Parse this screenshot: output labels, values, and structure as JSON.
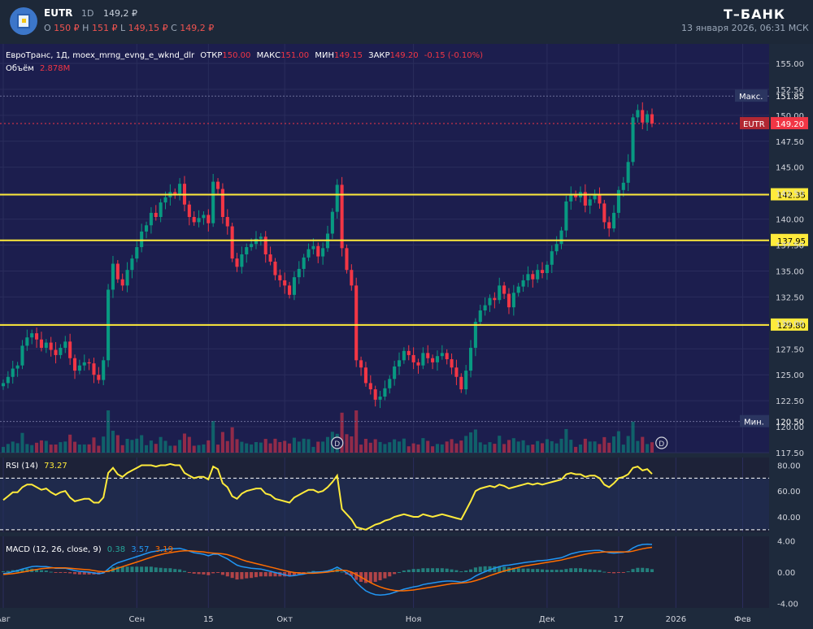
{
  "header": {
    "symbol": "EUTR",
    "timeframe": "1D",
    "price": "149,2 ₽",
    "o_label": "O",
    "o_value": "150 ₽",
    "h_label": "H",
    "h_value": "151 ₽",
    "l_label": "L",
    "l_value": "149,15 ₽",
    "c_label": "C",
    "c_value": "149,2 ₽",
    "brand": "Т–БАНК",
    "datetime": "13 января 2026, 06:31 МСК"
  },
  "legend": {
    "name": "ЕвроТранс, 1Д, moex_mrng_evng_e_wknd_dlr",
    "open_label": "ОТКР",
    "open_value": "150.00",
    "high_label": "МАКС",
    "high_value": "151.00",
    "low_label": "МИН",
    "low_value": "149.15",
    "close_label": "ЗАКР",
    "close_value": "149.20",
    "change": "-0.15 (-0.10%)",
    "volume_label": "Объём",
    "volume_value": "2.878M"
  },
  "colors": {
    "up": "#089981",
    "down": "#f23645",
    "level": "#ffeb3b",
    "rsi": "#ffeb3b",
    "macd": "#2196f3",
    "signal": "#ff6d00",
    "background": "#1e2a3c",
    "price_panel": "#1c1e4e"
  },
  "icons": [
    "dividend-marker-icon"
  ],
  "chart_data": [
    {
      "type": "candlestick",
      "title": "ЕвроТранс, 1Д",
      "ylim": [
        117.5,
        156.25
      ],
      "y_ticks": [
        "155.00",
        "152.50",
        "150.00",
        "147.50",
        "145.00",
        "142.50",
        "140.00",
        "137.50",
        "135.00",
        "132.50",
        "130.00",
        "127.50",
        "125.00",
        "122.50",
        "120.00",
        "117.50"
      ],
      "x_ticks": [
        "Авг",
        "Сен",
        "15",
        "Окт",
        "Ноя",
        "Дек",
        "17",
        "2026",
        "Фев"
      ],
      "closes": [
        124.2,
        124.8,
        125.6,
        125.9,
        127.8,
        128.6,
        129.0,
        128.4,
        127.6,
        128.1,
        127.4,
        126.9,
        127.6,
        128.2,
        126.6,
        125.4,
        125.9,
        126.2,
        126.1,
        125.0,
        124.5,
        126.4,
        133.2,
        135.7,
        134.2,
        133.6,
        135.1,
        136.2,
        137.3,
        138.8,
        139.4,
        140.6,
        140.2,
        141.6,
        142.1,
        142.6,
        142.3,
        143.4,
        141.4,
        140.2,
        139.7,
        140.1,
        140.4,
        139.6,
        143.6,
        142.9,
        140.2,
        139.3,
        136.2,
        135.4,
        136.6,
        137.3,
        137.6,
        138.1,
        138.3,
        136.6,
        135.9,
        134.6,
        134.1,
        133.6,
        132.7,
        134.4,
        135.2,
        136.3,
        137.1,
        137.4,
        136.4,
        137.2,
        138.6,
        140.7,
        143.3,
        137.2,
        135.1,
        133.6,
        126.4,
        125.7,
        124.2,
        123.6,
        122.6,
        122.9,
        123.7,
        124.6,
        125.8,
        126.4,
        127.3,
        126.9,
        126.2,
        125.9,
        127.1,
        126.6,
        126.2,
        126.8,
        127.1,
        126.5,
        125.7,
        124.8,
        123.6,
        125.4,
        127.6,
        130.1,
        131.2,
        131.7,
        132.4,
        132.2,
        133.6,
        132.8,
        131.5,
        132.9,
        133.5,
        134.1,
        134.7,
        134.2,
        135.1,
        134.8,
        135.6,
        136.9,
        137.6,
        138.9,
        141.7,
        142.4,
        142.1,
        142.6,
        141.3,
        141.9,
        142.3,
        141.5,
        139.7,
        139.1,
        140.6,
        142.8,
        143.5,
        145.5,
        149.8,
        150.5,
        149.3,
        150.1,
        149.2
      ],
      "volume_scale": "relative"
    },
    {
      "type": "line",
      "title": "RSI (14)",
      "current_value": "73.27",
      "ylim": [
        28,
        86
      ],
      "y_ticks": [
        "80.00",
        "60.00",
        "40.00"
      ],
      "bands": [
        70,
        30
      ],
      "series": [
        {
          "name": "RSI (14)",
          "values": [
            53,
            56,
            59,
            59,
            63,
            65,
            65,
            63,
            61,
            62,
            59,
            57,
            59,
            60,
            55,
            52,
            53,
            54,
            54,
            51,
            51,
            55,
            74,
            78,
            73,
            71,
            74,
            76,
            78,
            80,
            80,
            80,
            79,
            80,
            80,
            81,
            80,
            80,
            74,
            72,
            70,
            71,
            71,
            69,
            79,
            77,
            66,
            63,
            56,
            54,
            58,
            60,
            61,
            62,
            62,
            58,
            57,
            54,
            53,
            52,
            51,
            55,
            57,
            59,
            61,
            61,
            59,
            60,
            63,
            67,
            72,
            46,
            42,
            38,
            32,
            31,
            30,
            32,
            34,
            35,
            37,
            38,
            40,
            41,
            42,
            41,
            40,
            40,
            42,
            41,
            40,
            41,
            42,
            41,
            40,
            39,
            38,
            45,
            52,
            60,
            62,
            63,
            64,
            63,
            65,
            64,
            62,
            63,
            64,
            65,
            66,
            65,
            66,
            65,
            66,
            67,
            68,
            69,
            73,
            74,
            73,
            73,
            71,
            72,
            72,
            70,
            65,
            63,
            66,
            70,
            71,
            73,
            78,
            79,
            76,
            77,
            73.27
          ]
        }
      ]
    },
    {
      "type": "line",
      "title": "MACD (12, 26, close, 9)",
      "ylim": [
        -4.6,
        4.6
      ],
      "y_ticks": [
        "4.00",
        "0.00",
        "-4.00"
      ],
      "values_label": {
        "histogram": "0.38",
        "macd": "3.57",
        "signal": "3.19"
      },
      "series": [
        {
          "name": "MACD",
          "values": [
            -0.2,
            -0.1,
            0.05,
            0.2,
            0.4,
            0.55,
            0.7,
            0.75,
            0.7,
            0.7,
            0.6,
            0.5,
            0.5,
            0.5,
            0.35,
            0.2,
            0.1,
            0.05,
            0.0,
            -0.1,
            -0.2,
            -0.1,
            0.4,
            0.9,
            1.2,
            1.4,
            1.6,
            1.8,
            2.0,
            2.2,
            2.4,
            2.6,
            2.7,
            2.8,
            2.9,
            3.0,
            3.0,
            3.05,
            2.9,
            2.7,
            2.5,
            2.4,
            2.3,
            2.1,
            2.3,
            2.3,
            2.0,
            1.7,
            1.3,
            0.9,
            0.7,
            0.6,
            0.5,
            0.45,
            0.4,
            0.25,
            0.1,
            -0.05,
            -0.2,
            -0.35,
            -0.5,
            -0.45,
            -0.35,
            -0.25,
            -0.1,
            0.0,
            0.0,
            0.05,
            0.15,
            0.35,
            0.65,
            0.3,
            -0.1,
            -0.5,
            -1.3,
            -1.9,
            -2.4,
            -2.7,
            -2.9,
            -2.95,
            -2.9,
            -2.8,
            -2.6,
            -2.4,
            -2.2,
            -2.05,
            -1.9,
            -1.8,
            -1.6,
            -1.5,
            -1.4,
            -1.3,
            -1.2,
            -1.15,
            -1.15,
            -1.2,
            -1.3,
            -1.15,
            -0.9,
            -0.5,
            -0.2,
            0.05,
            0.3,
            0.5,
            0.7,
            0.85,
            0.9,
            1.0,
            1.1,
            1.2,
            1.3,
            1.35,
            1.45,
            1.5,
            1.55,
            1.65,
            1.75,
            1.85,
            2.1,
            2.35,
            2.5,
            2.65,
            2.7,
            2.75,
            2.8,
            2.8,
            2.65,
            2.5,
            2.45,
            2.5,
            2.55,
            2.7,
            3.1,
            3.4,
            3.55,
            3.6,
            3.57
          ]
        },
        {
          "name": "Signal",
          "values": [
            -0.3,
            -0.25,
            -0.2,
            -0.1,
            0.0,
            0.1,
            0.25,
            0.35,
            0.45,
            0.5,
            0.55,
            0.55,
            0.55,
            0.55,
            0.5,
            0.45,
            0.4,
            0.35,
            0.3,
            0.2,
            0.1,
            0.05,
            0.1,
            0.3,
            0.5,
            0.7,
            0.9,
            1.1,
            1.3,
            1.5,
            1.7,
            1.9,
            2.1,
            2.25,
            2.4,
            2.5,
            2.6,
            2.7,
            2.75,
            2.75,
            2.7,
            2.65,
            2.6,
            2.5,
            2.45,
            2.4,
            2.35,
            2.25,
            2.05,
            1.85,
            1.6,
            1.4,
            1.25,
            1.1,
            0.95,
            0.8,
            0.65,
            0.5,
            0.35,
            0.2,
            0.05,
            -0.05,
            -0.1,
            -0.15,
            -0.15,
            -0.15,
            -0.1,
            -0.05,
            0.0,
            0.1,
            0.2,
            0.25,
            0.2,
            0.0,
            -0.3,
            -0.65,
            -1.0,
            -1.35,
            -1.65,
            -1.9,
            -2.1,
            -2.25,
            -2.35,
            -2.4,
            -2.4,
            -2.35,
            -2.3,
            -2.2,
            -2.1,
            -2.0,
            -1.9,
            -1.8,
            -1.7,
            -1.6,
            -1.5,
            -1.45,
            -1.4,
            -1.35,
            -1.25,
            -1.1,
            -0.9,
            -0.7,
            -0.45,
            -0.25,
            -0.05,
            0.15,
            0.3,
            0.45,
            0.6,
            0.75,
            0.85,
            0.95,
            1.05,
            1.15,
            1.25,
            1.35,
            1.45,
            1.55,
            1.7,
            1.85,
            2.0,
            2.15,
            2.3,
            2.4,
            2.5,
            2.55,
            2.6,
            2.6,
            2.6,
            2.6,
            2.6,
            2.6,
            2.7,
            2.85,
            3.0,
            3.1,
            3.19
          ]
        }
      ]
    }
  ],
  "levels": [
    {
      "label": "142.35"
    },
    {
      "label": "137.95"
    },
    {
      "label": "129.80"
    }
  ],
  "markers": {
    "max_label": "Макс.",
    "max_value": "151.85",
    "min_label": "Мин.",
    "min_value": "120.50",
    "price_tag_symbol": "EUTR",
    "price_tag_value": "149.20",
    "dividend_letter": "D"
  }
}
